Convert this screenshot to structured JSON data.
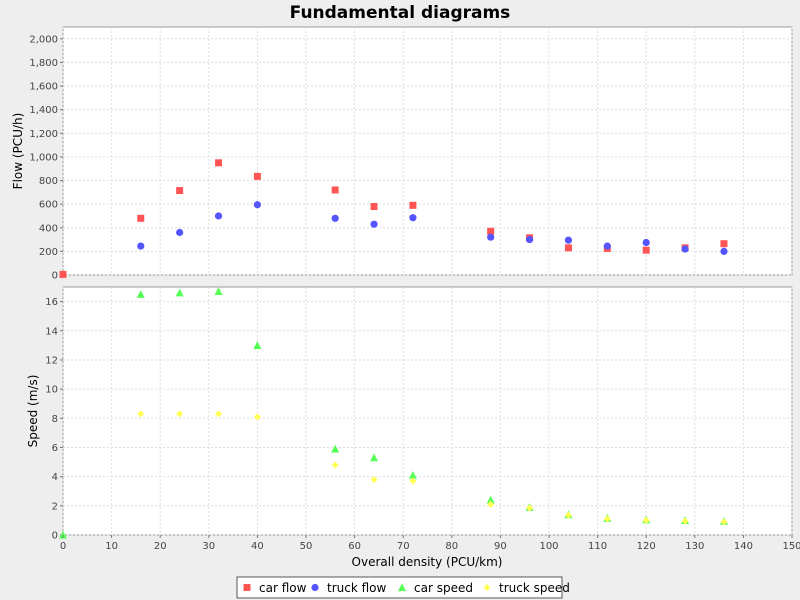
{
  "chart_data": {
    "type": "scatter",
    "title": "Fundamental diagrams",
    "xlabel": "Overall density (PCU/km)",
    "xlim": [
      0,
      150
    ],
    "xticks": [
      0,
      10,
      20,
      30,
      40,
      50,
      60,
      70,
      80,
      90,
      100,
      110,
      120,
      130,
      140,
      150
    ],
    "grid": true,
    "legend_position": "bottom",
    "subplots": [
      {
        "ylabel": "Flow (PCU/h)",
        "ylim": [
          0,
          2100
        ],
        "yticks": [
          0,
          200,
          400,
          600,
          800,
          1000,
          1200,
          1400,
          1600,
          1800,
          2000
        ],
        "ytick_labels": [
          "0",
          "200",
          "400",
          "600",
          "800",
          "1,000",
          "1,200",
          "1,400",
          "1,600",
          "1,800",
          "2,000"
        ],
        "series": [
          {
            "name": "car flow",
            "marker": "square",
            "color": "#ff5555",
            "points": [
              [
                0,
                5
              ],
              [
                16,
                480
              ],
              [
                24,
                715
              ],
              [
                32,
                950
              ],
              [
                40,
                835
              ],
              [
                56,
                720
              ],
              [
                64,
                580
              ],
              [
                72,
                590
              ],
              [
                88,
                370
              ],
              [
                96,
                315
              ],
              [
                104,
                230
              ],
              [
                112,
                225
              ],
              [
                120,
                210
              ],
              [
                128,
                230
              ],
              [
                136,
                265
              ]
            ]
          },
          {
            "name": "truck flow",
            "marker": "circle",
            "color": "#5555ff",
            "points": [
              [
                16,
                245
              ],
              [
                24,
                360
              ],
              [
                32,
                500
              ],
              [
                40,
                595
              ],
              [
                56,
                480
              ],
              [
                64,
                430
              ],
              [
                72,
                485
              ],
              [
                88,
                320
              ],
              [
                96,
                300
              ],
              [
                104,
                295
              ],
              [
                112,
                245
              ],
              [
                120,
                275
              ],
              [
                128,
                220
              ],
              [
                136,
                200
              ]
            ]
          }
        ]
      },
      {
        "ylabel": "Speed (m/s)",
        "ylim": [
          0,
          17
        ],
        "yticks": [
          0,
          2,
          4,
          6,
          8,
          10,
          12,
          14,
          16
        ],
        "ytick_labels": [
          "0",
          "2",
          "4",
          "6",
          "8",
          "10",
          "12",
          "14",
          "16"
        ],
        "series": [
          {
            "name": "car speed",
            "marker": "triangle",
            "color": "#55ff55",
            "points": [
              [
                0,
                0
              ],
              [
                16,
                16.5
              ],
              [
                24,
                16.6
              ],
              [
                32,
                16.7
              ],
              [
                40,
                13.0
              ],
              [
                56,
                5.9
              ],
              [
                64,
                5.3
              ],
              [
                72,
                4.1
              ],
              [
                88,
                2.4
              ],
              [
                96,
                1.9
              ],
              [
                104,
                1.4
              ],
              [
                112,
                1.15
              ],
              [
                120,
                1.05
              ],
              [
                128,
                1.0
              ],
              [
                136,
                0.95
              ]
            ]
          },
          {
            "name": "truck speed",
            "marker": "diamond",
            "color": "#ffff55",
            "points": [
              [
                16,
                8.3
              ],
              [
                24,
                8.3
              ],
              [
                32,
                8.3
              ],
              [
                40,
                8.1
              ],
              [
                56,
                4.8
              ],
              [
                64,
                3.8
              ],
              [
                72,
                3.7
              ],
              [
                88,
                2.1
              ],
              [
                96,
                1.85
              ],
              [
                104,
                1.35
              ],
              [
                112,
                1.1
              ],
              [
                120,
                1.0
              ],
              [
                128,
                0.95
              ],
              [
                136,
                0.9
              ]
            ]
          }
        ]
      }
    ]
  }
}
